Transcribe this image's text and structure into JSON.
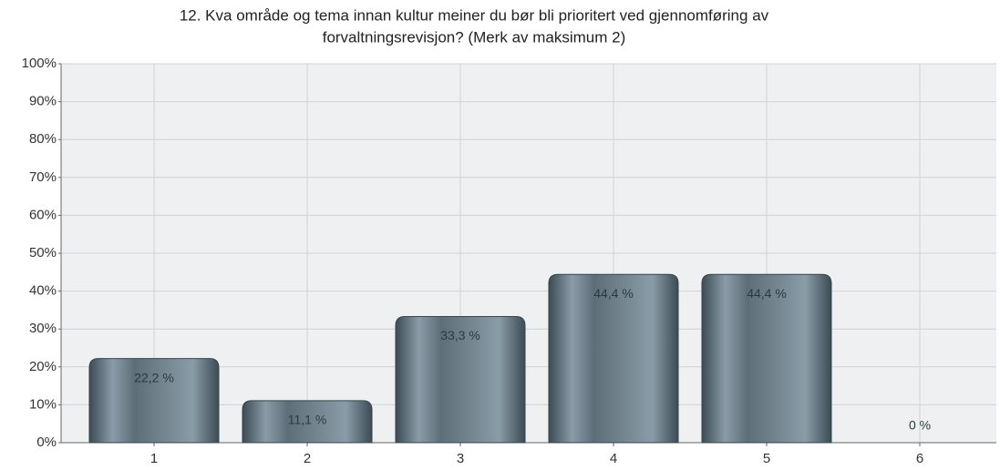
{
  "chart_data": {
    "type": "bar",
    "title": [
      "12. Kva område og tema innan kultur meiner du bør bli prioritert ved gjennomføring av",
      "forvaltningsrevisjon? (Merk av maksimum 2)"
    ],
    "categories": [
      "1",
      "2",
      "3",
      "4",
      "5",
      "6"
    ],
    "values": [
      22.2,
      11.1,
      33.3,
      44.4,
      44.4,
      0
    ],
    "value_labels": [
      "22,2 %",
      "11,1 %",
      "33,3 %",
      "44,4 %",
      "44,4 %",
      "0 %"
    ],
    "color": "#8a9ca7",
    "ylim": [
      0,
      100
    ],
    "yticks": [
      {
        "value": 0,
        "label": "0%"
      },
      {
        "value": 10,
        "label": "10%"
      },
      {
        "value": 20,
        "label": "20%"
      },
      {
        "value": 30,
        "label": "30%"
      },
      {
        "value": 40,
        "label": "40%"
      },
      {
        "value": 50,
        "label": "50%"
      },
      {
        "value": 60,
        "label": "60%"
      },
      {
        "value": 70,
        "label": "70%"
      },
      {
        "value": 80,
        "label": "80%"
      },
      {
        "value": 90,
        "label": "90%"
      },
      {
        "value": 100,
        "label": "100%"
      }
    ],
    "grid": true
  }
}
